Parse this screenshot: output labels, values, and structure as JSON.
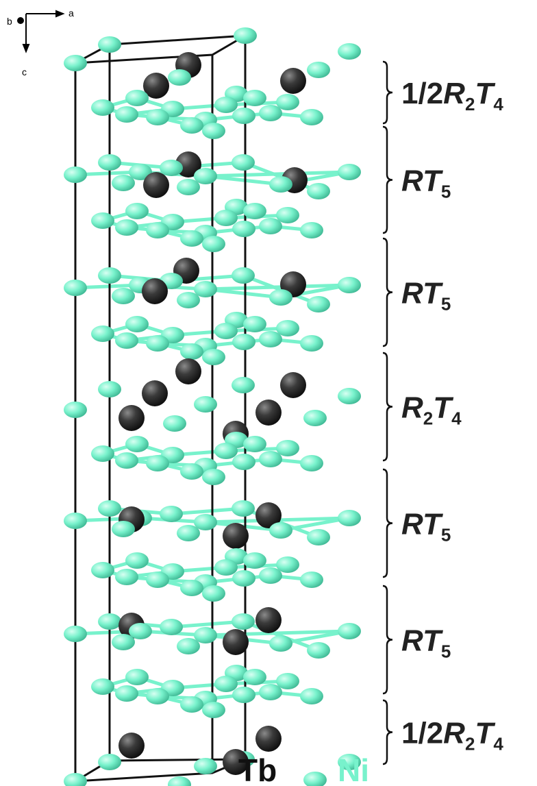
{
  "axes": {
    "a": "a",
    "b": "b",
    "c": "c"
  },
  "layers": [
    {
      "parts": [
        {
          "text": "1/2"
        },
        {
          "text": "R",
          "style": "italic"
        },
        {
          "text": "2",
          "style": "sub"
        },
        {
          "text": "T",
          "style": "italic"
        },
        {
          "text": "4",
          "style": "sub"
        }
      ]
    },
    {
      "parts": [
        {
          "text": "R",
          "style": "italic"
        },
        {
          "text": "T",
          "style": "italic"
        },
        {
          "text": "5",
          "style": "sub"
        }
      ]
    },
    {
      "parts": [
        {
          "text": "R",
          "style": "italic"
        },
        {
          "text": "T",
          "style": "italic"
        },
        {
          "text": "5",
          "style": "sub"
        }
      ]
    },
    {
      "parts": [
        {
          "text": "R",
          "style": "italic"
        },
        {
          "text": "2",
          "style": "sub"
        },
        {
          "text": "T",
          "style": "italic"
        },
        {
          "text": "4",
          "style": "sub"
        }
      ]
    },
    {
      "parts": [
        {
          "text": "R",
          "style": "italic"
        },
        {
          "text": "T",
          "style": "italic"
        },
        {
          "text": "5",
          "style": "sub"
        }
      ]
    },
    {
      "parts": [
        {
          "text": "R",
          "style": "italic"
        },
        {
          "text": "T",
          "style": "italic"
        },
        {
          "text": "5",
          "style": "sub"
        }
      ]
    },
    {
      "parts": [
        {
          "text": "1/2"
        },
        {
          "text": "R",
          "style": "italic"
        },
        {
          "text": "2",
          "style": "sub"
        },
        {
          "text": "T",
          "style": "italic"
        },
        {
          "text": "4",
          "style": "sub"
        }
      ]
    }
  ],
  "legend": [
    {
      "label": "Tb",
      "color": "#3b3b3b"
    },
    {
      "label": "Ni",
      "color": "#78f2cc"
    }
  ]
}
